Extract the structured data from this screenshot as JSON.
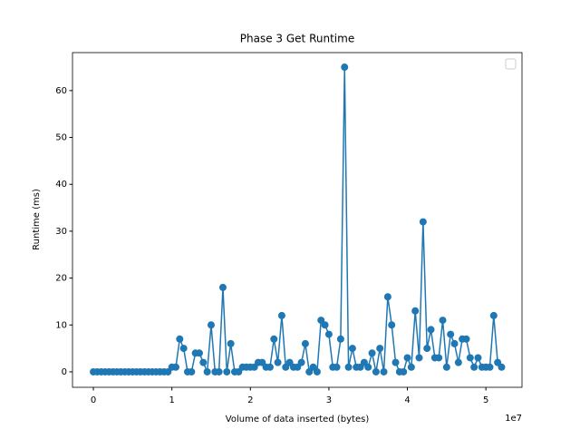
{
  "chart_data": {
    "type": "line",
    "title": "Phase 3 Get Runtime",
    "xlabel": "Volume of data inserted (bytes)",
    "ylabel": "Runtime (ms)",
    "x_offset_label": "1e7",
    "x": [
      0,
      500000,
      1000000,
      1500000,
      2000000,
      2500000,
      3000000,
      3500000,
      4000000,
      4500000,
      5000000,
      5500000,
      6000000,
      6500000,
      7000000,
      7500000,
      8000000,
      8500000,
      9000000,
      9500000,
      10000000,
      10500000,
      11000000,
      11500000,
      12000000,
      12500000,
      13000000,
      13500000,
      14000000,
      14500000,
      15000000,
      15500000,
      16000000,
      16500000,
      17000000,
      17500000,
      18000000,
      18500000,
      19000000,
      19500000,
      20000000,
      20500000,
      21000000,
      21500000,
      22000000,
      22500000,
      23000000,
      23500000,
      24000000,
      24500000,
      25000000,
      25500000,
      26000000,
      26500000,
      27000000,
      27500000,
      28000000,
      28500000,
      29000000,
      29500000,
      30000000,
      30500000,
      31000000,
      31500000,
      32000000,
      32500000,
      33000000,
      33500000,
      34000000,
      34500000,
      35000000,
      35500000,
      36000000,
      36500000,
      37000000,
      37500000,
      38000000,
      38500000,
      39000000,
      39500000,
      40000000,
      40500000,
      41000000,
      41500000,
      42000000,
      42500000,
      43000000,
      43500000,
      44000000,
      44500000,
      45000000,
      45500000,
      46000000,
      46500000,
      47000000,
      47500000,
      48000000,
      48500000,
      49000000,
      49500000,
      50000000,
      50500000,
      51000000,
      51500000,
      52000000
    ],
    "series": [
      {
        "color": "#1f77b4",
        "values": [
          0,
          0,
          0,
          0,
          0,
          0,
          0,
          0,
          0,
          0,
          0,
          0,
          0,
          0,
          0,
          0,
          0,
          0,
          0,
          0,
          1,
          1,
          7,
          5,
          0,
          0,
          4,
          4,
          2,
          0,
          10,
          0,
          0,
          18,
          0,
          6,
          0,
          0,
          1,
          1,
          1,
          1,
          2,
          2,
          1,
          1,
          7,
          2,
          12,
          1,
          2,
          1,
          1,
          2,
          6,
          0,
          1,
          0,
          11,
          10,
          8,
          1,
          1,
          7,
          65,
          1,
          5,
          1,
          1,
          2,
          1,
          4,
          0,
          5,
          0,
          16,
          10,
          2,
          0,
          0,
          3,
          1,
          13,
          3,
          32,
          5,
          9,
          3,
          3,
          11,
          1,
          8,
          6,
          2,
          7,
          7,
          3,
          1,
          3,
          1,
          1,
          1,
          12,
          2,
          1
        ]
      }
    ],
    "xlim": [
      -2660000,
      54600000
    ],
    "xticks": [
      {
        "value": 0,
        "label": "0"
      },
      {
        "value": 10000000,
        "label": "1"
      },
      {
        "value": 20000000,
        "label": "2"
      },
      {
        "value": 30000000,
        "label": "3"
      },
      {
        "value": 40000000,
        "label": "4"
      },
      {
        "value": 50000000,
        "label": "5"
      }
    ],
    "ylim": [
      -3.3,
      68.1
    ],
    "yticks": [
      0,
      10,
      20,
      30,
      40,
      50,
      60
    ],
    "legend": "upper right",
    "grid": false
  }
}
